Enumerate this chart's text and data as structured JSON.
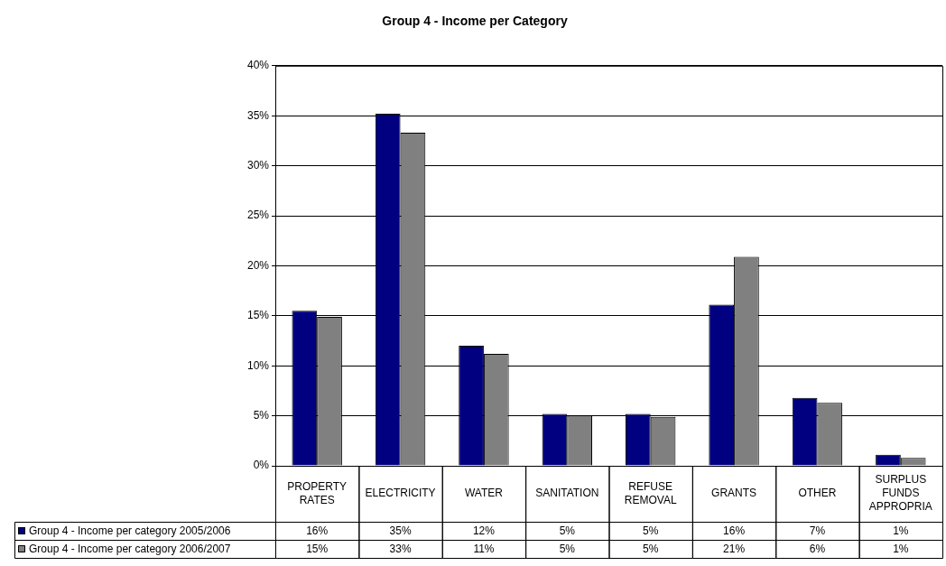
{
  "chart_data": {
    "type": "bar",
    "title": "Group 4 - Income per Category",
    "categories": [
      "PROPERTY RATES",
      "ELECTRICITY",
      "WATER",
      "SANITATION",
      "REFUSE REMOVAL",
      "GRANTS",
      "OTHER",
      "SURPLUS FUNDS APPROPRIA"
    ],
    "series": [
      {
        "name": "Group 4 - Income per category 2005/2006",
        "color": "#000080",
        "values": [
          15.5,
          35.2,
          12.0,
          5.2,
          5.2,
          16.1,
          6.8,
          1.1
        ],
        "value_labels": [
          "16%",
          "35%",
          "12%",
          "5%",
          "5%",
          "16%",
          "7%",
          "1%"
        ]
      },
      {
        "name": "Group 4 - Income per category 2006/2007",
        "color": "#808080",
        "values": [
          14.9,
          33.3,
          11.2,
          5.0,
          4.9,
          20.9,
          6.3,
          0.8
        ],
        "value_labels": [
          "15%",
          "33%",
          "11%",
          "5%",
          "5%",
          "21%",
          "6%",
          "1%"
        ]
      }
    ],
    "ylim": [
      0,
      40
    ],
    "yticks": [
      {
        "value": 0,
        "label": "0%"
      },
      {
        "value": 5,
        "label": "5%"
      },
      {
        "value": 10,
        "label": "10%"
      },
      {
        "value": 15,
        "label": "15%"
      },
      {
        "value": 20,
        "label": "20%"
      },
      {
        "value": 25,
        "label": "25%"
      },
      {
        "value": 30,
        "label": "30%"
      },
      {
        "value": 35,
        "label": "35%"
      },
      {
        "value": 40,
        "label": "40%"
      }
    ],
    "grid": "y",
    "legend": "bottom"
  }
}
